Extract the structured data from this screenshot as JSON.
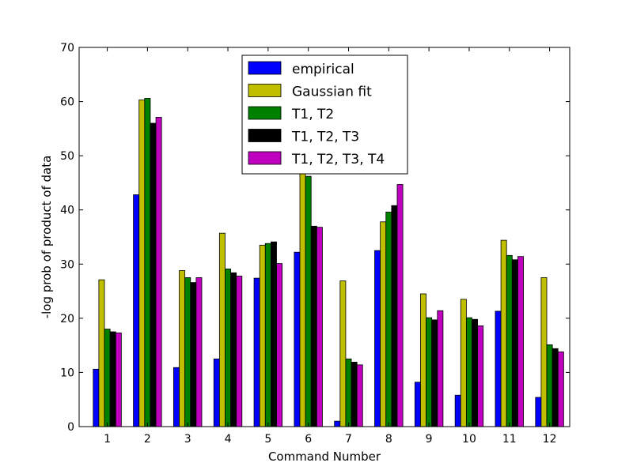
{
  "chart_data": {
    "type": "bar",
    "title": "",
    "xlabel": "Command Number",
    "ylabel": "-log prob of product of data",
    "ylim": [
      0,
      70
    ],
    "yticks": [
      0,
      10,
      20,
      30,
      40,
      50,
      60,
      70
    ],
    "grid": false,
    "legend_placement": "top-center",
    "categories": [
      "1",
      "2",
      "3",
      "4",
      "5",
      "6",
      "7",
      "8",
      "9",
      "10",
      "11",
      "12"
    ],
    "series": [
      {
        "name": "empirical",
        "color": "#0000ff",
        "values": [
          10.6,
          42.8,
          10.9,
          12.5,
          27.4,
          32.2,
          1.0,
          32.5,
          8.2,
          5.8,
          21.3,
          5.4
        ]
      },
      {
        "name": "Gaussian fit",
        "color": "#bfbf00",
        "values": [
          27.1,
          60.3,
          28.8,
          35.7,
          33.5,
          48.0,
          26.9,
          37.8,
          24.5,
          23.5,
          34.4,
          27.5
        ]
      },
      {
        "name": "T1, T2",
        "color": "#008000",
        "values": [
          18.0,
          60.6,
          27.5,
          29.1,
          33.8,
          46.2,
          12.5,
          39.6,
          20.1,
          20.1,
          31.6,
          15.1
        ]
      },
      {
        "name": "T1, T2, T3",
        "color": "#000000",
        "values": [
          17.5,
          56.0,
          26.6,
          28.4,
          34.1,
          37.0,
          11.9,
          40.8,
          19.7,
          19.8,
          30.8,
          14.4
        ]
      },
      {
        "name": "T1, T2, T3, T4",
        "color": "#bf00bf",
        "values": [
          17.3,
          57.1,
          27.5,
          27.8,
          30.1,
          36.8,
          11.4,
          44.7,
          21.4,
          18.6,
          31.4,
          13.8
        ]
      }
    ]
  }
}
